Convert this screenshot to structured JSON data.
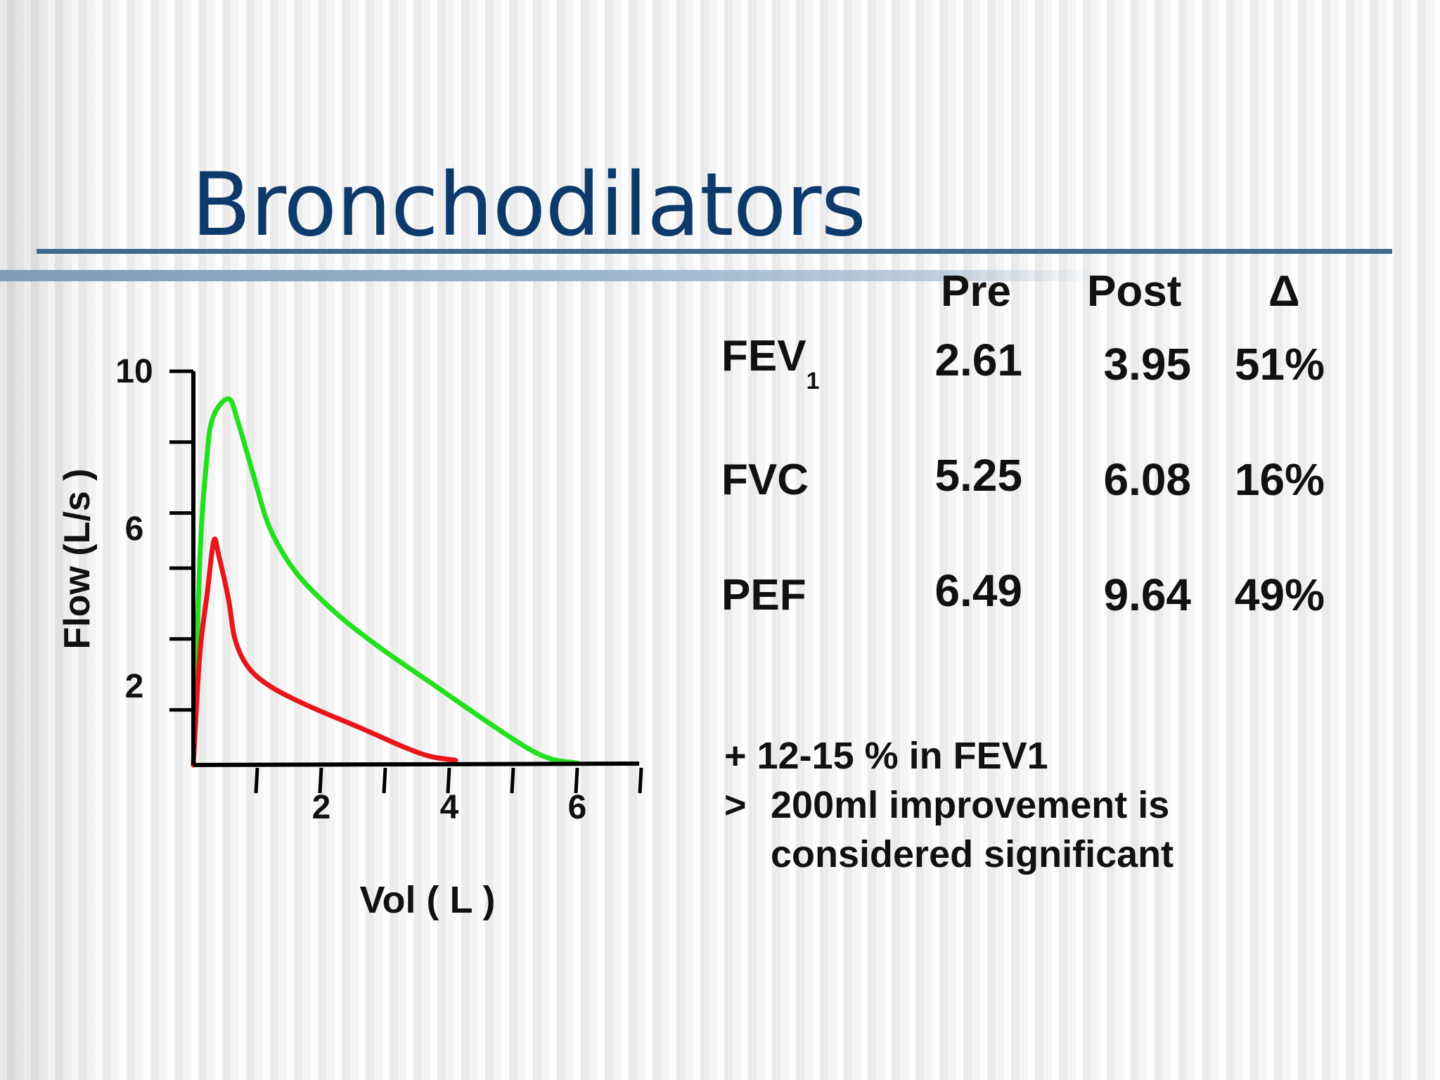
{
  "slide": {
    "title": "Bronchodilators"
  },
  "table": {
    "columns": [
      "Pre",
      "Post",
      "Δ"
    ],
    "rows": [
      {
        "label": "FEV",
        "subscript": "1",
        "pre": "2.61",
        "post": "3.95",
        "delta": "51%"
      },
      {
        "label": "FVC",
        "subscript": "",
        "pre": "5.25",
        "post": "6.08",
        "delta": "16%"
      },
      {
        "label": "PEF",
        "subscript": "",
        "pre": "6.49",
        "post": "9.64",
        "delta": "49%"
      }
    ]
  },
  "notes": {
    "line1": "+ 12-15 % in FEV1",
    "line2_mark": ">",
    "line2": "200ml improvement is",
    "line3": "considered significant"
  },
  "chart_data": {
    "type": "line",
    "xlabel": "Vol ( L )",
    "ylabel": "Flow (L/s )",
    "xlim": [
      0,
      7
    ],
    "ylim": [
      0,
      10
    ],
    "x_tick_labels": [
      {
        "value": 2,
        "label": "2"
      },
      {
        "value": 4,
        "label": "4"
      },
      {
        "value": 6,
        "label": "6"
      }
    ],
    "y_tick_labels": [
      {
        "value": 10,
        "label": "10"
      },
      {
        "value": 6,
        "label": "6"
      },
      {
        "value": 2,
        "label": "2"
      }
    ],
    "x_ticks": [
      1,
      2,
      3,
      4,
      5,
      6,
      7
    ],
    "y_ticks": [
      1.4,
      3.2,
      5,
      6.4,
      8.2,
      10
    ],
    "grid": false,
    "series": [
      {
        "color": "#22e01e",
        "points": [
          [
            0,
            0
          ],
          [
            0.1,
            5.2
          ],
          [
            0.2,
            7.6
          ],
          [
            0.3,
            8.8
          ],
          [
            0.55,
            9.3
          ],
          [
            0.7,
            8.7
          ],
          [
            0.95,
            7.3
          ],
          [
            1.2,
            6.0
          ],
          [
            1.6,
            4.9
          ],
          [
            2.2,
            3.9
          ],
          [
            2.9,
            3.0
          ],
          [
            3.7,
            2.1
          ],
          [
            4.5,
            1.2
          ],
          [
            5.2,
            0.45
          ],
          [
            5.6,
            0.15
          ],
          [
            6.0,
            0.05
          ]
        ]
      },
      {
        "color": "#e8161b",
        "points": [
          [
            0,
            0
          ],
          [
            0.1,
            2.8
          ],
          [
            0.22,
            4.4
          ],
          [
            0.32,
            5.7
          ],
          [
            0.4,
            5.3
          ],
          [
            0.55,
            4.2
          ],
          [
            0.65,
            3.2
          ],
          [
            0.85,
            2.5
          ],
          [
            1.2,
            2.0
          ],
          [
            1.8,
            1.5
          ],
          [
            2.6,
            0.95
          ],
          [
            3.3,
            0.45
          ],
          [
            3.7,
            0.22
          ],
          [
            4.1,
            0.12
          ]
        ]
      }
    ]
  }
}
